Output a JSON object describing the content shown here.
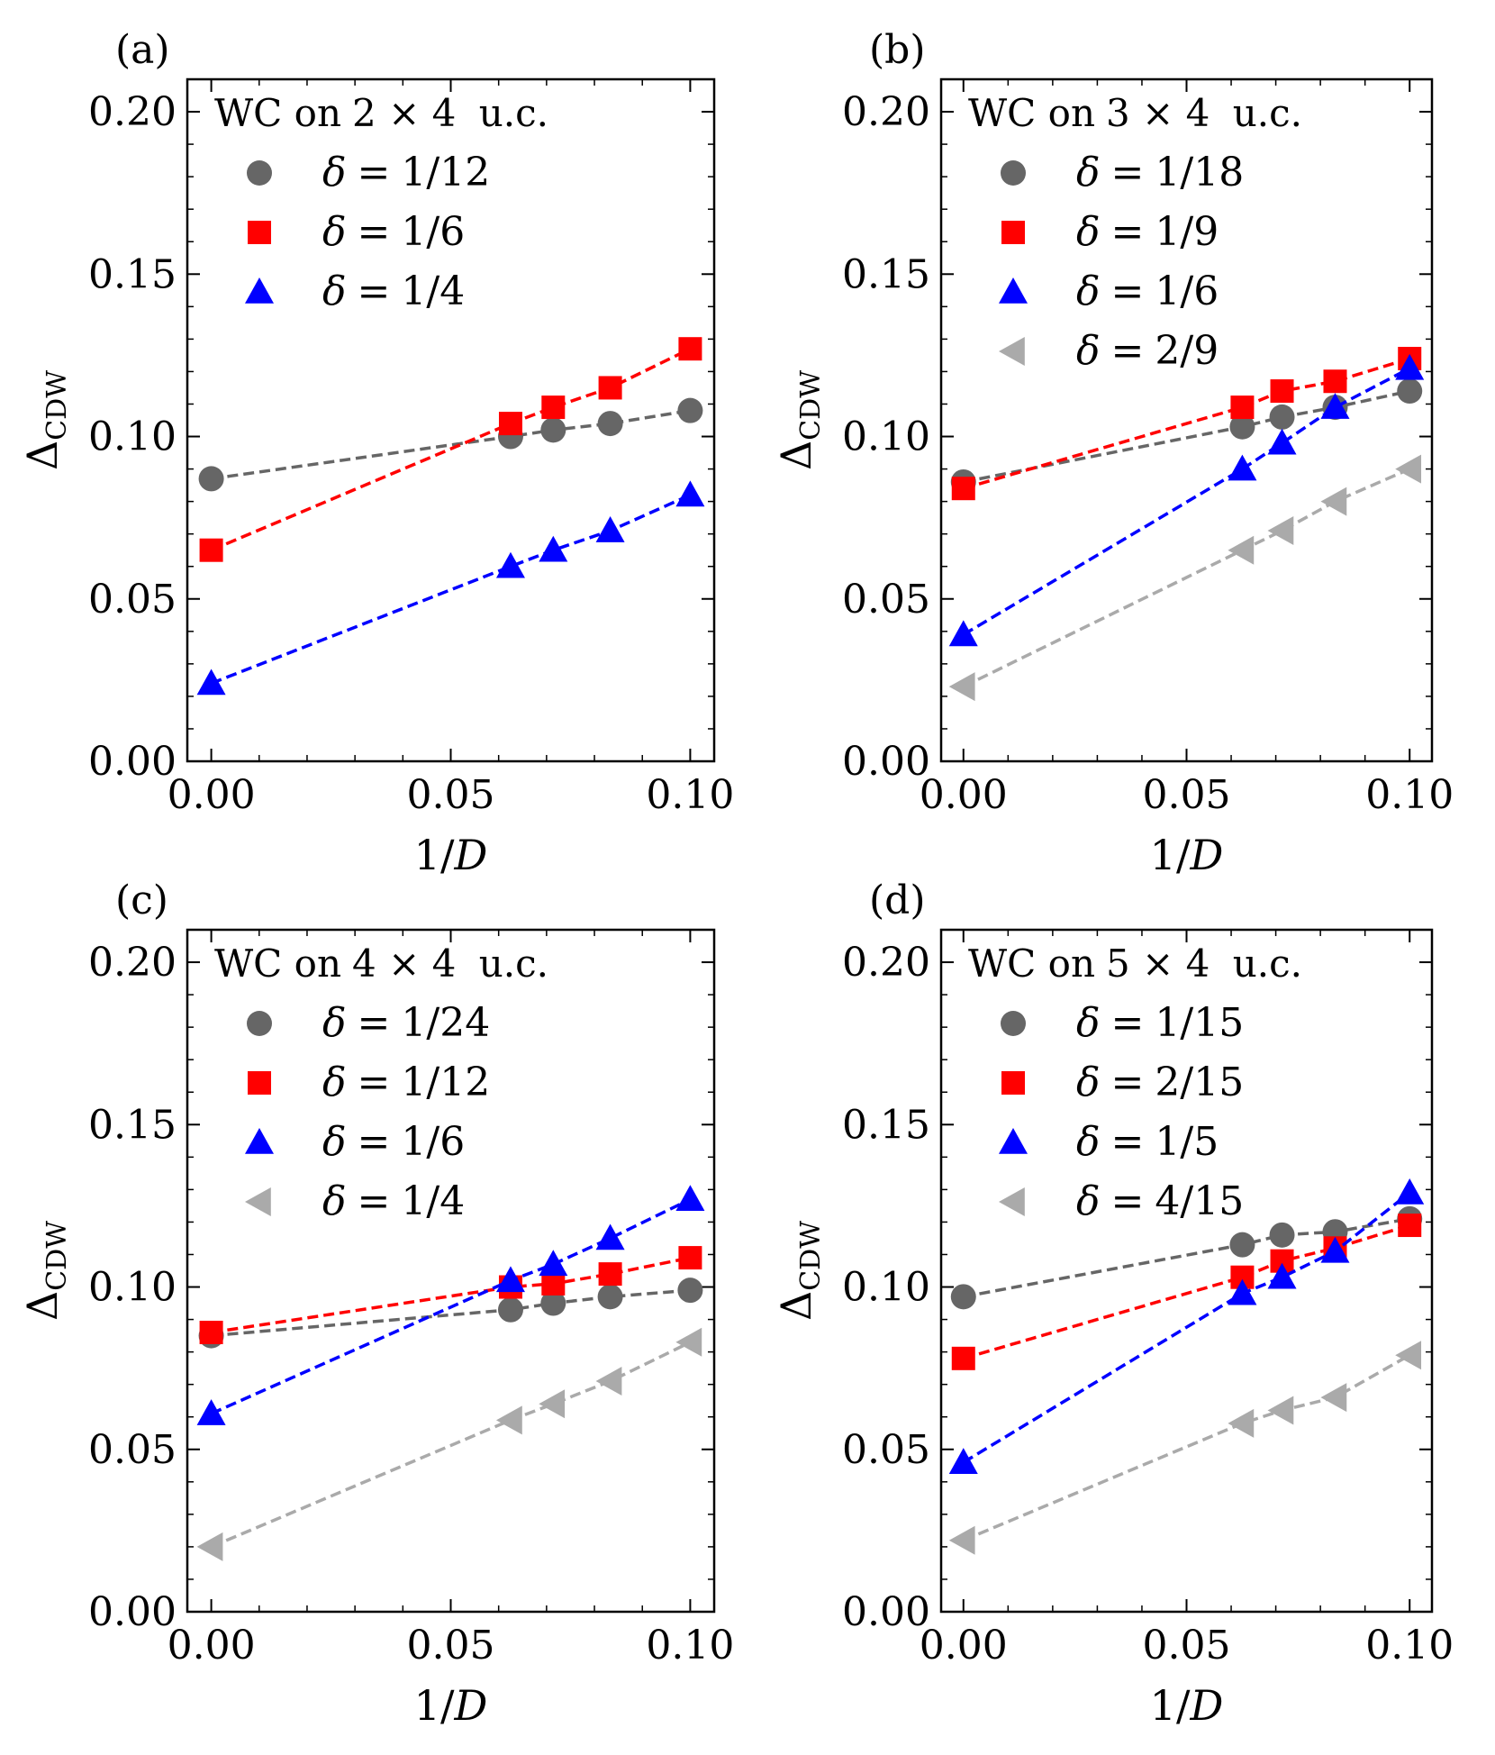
{
  "figure": {
    "xlabel_prefix": "1/",
    "xlabel_var": "D",
    "ylabel_main": "Δ",
    "ylabel_sub": "CDW",
    "xlim": [
      -0.005,
      0.105
    ],
    "ylim": [
      0.0,
      0.21
    ],
    "xticks": [
      "0.00",
      "0.05",
      "0.10"
    ],
    "yticks": [
      "0.00",
      "0.05",
      "0.10",
      "0.15",
      "0.20"
    ],
    "delta_symbol": "δ",
    "colors": {
      "gray": "#666666",
      "red": "#ff0000",
      "blue": "#0000ff",
      "lightgray": "#aaaaaa"
    }
  },
  "chart_data": [
    {
      "type": "line",
      "label": "(a)",
      "legend_title_prefix": "WC on",
      "legend_title_size": "2 × 4",
      "legend_title_suffix": "u.c.",
      "xlabel": "1/D",
      "ylabel": "ΔCDW",
      "series": [
        {
          "name": "δ = 1/12",
          "frac": "1/12",
          "marker": "circle",
          "color": "gray",
          "x": [
            0.0,
            0.0625,
            0.0714,
            0.0833,
            0.1
          ],
          "y": [
            0.087,
            0.1,
            0.102,
            0.104,
            0.108
          ]
        },
        {
          "name": "δ = 1/6",
          "frac": "1/6",
          "marker": "square",
          "color": "red",
          "x": [
            0.0,
            0.0625,
            0.0714,
            0.0833,
            0.1
          ],
          "y": [
            0.065,
            0.104,
            0.109,
            0.115,
            0.127
          ]
        },
        {
          "name": "δ = 1/4",
          "frac": "1/4",
          "marker": "triangle-up",
          "color": "blue",
          "x": [
            0.0,
            0.0625,
            0.0714,
            0.0833,
            0.1
          ],
          "y": [
            0.024,
            0.06,
            0.065,
            0.071,
            0.082
          ]
        }
      ]
    },
    {
      "type": "line",
      "label": "(b)",
      "legend_title_prefix": "WC on",
      "legend_title_size": "3 × 4",
      "legend_title_suffix": "u.c.",
      "xlabel": "1/D",
      "ylabel": "ΔCDW",
      "series": [
        {
          "name": "δ = 1/18",
          "frac": "1/18",
          "marker": "circle",
          "color": "gray",
          "x": [
            0.0,
            0.0625,
            0.0714,
            0.0833,
            0.1
          ],
          "y": [
            0.086,
            0.103,
            0.106,
            0.109,
            0.114
          ]
        },
        {
          "name": "δ = 1/9",
          "frac": "1/9",
          "marker": "square",
          "color": "red",
          "x": [
            0.0,
            0.0625,
            0.0714,
            0.0833,
            0.1
          ],
          "y": [
            0.084,
            0.109,
            0.114,
            0.117,
            0.124
          ]
        },
        {
          "name": "δ = 1/6",
          "frac": "1/6",
          "marker": "triangle-up",
          "color": "blue",
          "x": [
            0.0,
            0.0625,
            0.0714,
            0.0833,
            0.1
          ],
          "y": [
            0.039,
            0.09,
            0.098,
            0.109,
            0.121
          ]
        },
        {
          "name": "δ = 2/9",
          "frac": "2/9",
          "marker": "triangle-left",
          "color": "lightgray",
          "x": [
            0.0,
            0.0625,
            0.0714,
            0.0833,
            0.1
          ],
          "y": [
            0.023,
            0.065,
            0.071,
            0.08,
            0.09
          ]
        }
      ]
    },
    {
      "type": "line",
      "label": "(c)",
      "legend_title_prefix": "WC on",
      "legend_title_size": "4 × 4",
      "legend_title_suffix": "u.c.",
      "xlabel": "1/D",
      "ylabel": "ΔCDW",
      "series": [
        {
          "name": "δ = 1/24",
          "frac": "1/24",
          "marker": "circle",
          "color": "gray",
          "x": [
            0.0,
            0.0625,
            0.0714,
            0.0833,
            0.1
          ],
          "y": [
            0.085,
            0.093,
            0.095,
            0.097,
            0.099
          ]
        },
        {
          "name": "δ = 1/12",
          "frac": "1/12",
          "marker": "square",
          "color": "red",
          "x": [
            0.0,
            0.0625,
            0.0714,
            0.0833,
            0.1
          ],
          "y": [
            0.086,
            0.1,
            0.101,
            0.104,
            0.109
          ]
        },
        {
          "name": "δ = 1/6",
          "frac": "1/6",
          "marker": "triangle-up",
          "color": "blue",
          "x": [
            0.0,
            0.0625,
            0.0714,
            0.0833,
            0.1
          ],
          "y": [
            0.061,
            0.102,
            0.107,
            0.115,
            0.127
          ]
        },
        {
          "name": "δ = 1/4",
          "frac": "1/4",
          "marker": "triangle-left",
          "color": "lightgray",
          "x": [
            0.0,
            0.0625,
            0.0714,
            0.0833,
            0.1
          ],
          "y": [
            0.02,
            0.059,
            0.064,
            0.071,
            0.083
          ]
        }
      ]
    },
    {
      "type": "line",
      "label": "(d)",
      "legend_title_prefix": "WC on",
      "legend_title_size": "5 × 4",
      "legend_title_suffix": "u.c.",
      "xlabel": "1/D",
      "ylabel": "ΔCDW",
      "series": [
        {
          "name": "δ = 1/15",
          "frac": "1/15",
          "marker": "circle",
          "color": "gray",
          "x": [
            0.0,
            0.0625,
            0.0714,
            0.0833,
            0.1
          ],
          "y": [
            0.097,
            0.113,
            0.116,
            0.117,
            0.121
          ]
        },
        {
          "name": "δ = 2/15",
          "frac": "2/15",
          "marker": "square",
          "color": "red",
          "x": [
            0.0,
            0.0625,
            0.0714,
            0.0833,
            0.1
          ],
          "y": [
            0.078,
            0.103,
            0.108,
            0.112,
            0.119
          ]
        },
        {
          "name": "δ = 1/5",
          "frac": "1/5",
          "marker": "triangle-up",
          "color": "blue",
          "x": [
            0.0,
            0.0625,
            0.0714,
            0.0833,
            0.1
          ],
          "y": [
            0.046,
            0.098,
            0.103,
            0.111,
            0.129
          ]
        },
        {
          "name": "δ = 4/15",
          "frac": "4/15",
          "marker": "triangle-left",
          "color": "lightgray",
          "x": [
            0.0,
            0.0625,
            0.0714,
            0.0833,
            0.1
          ],
          "y": [
            0.022,
            0.058,
            0.062,
            0.066,
            0.079
          ]
        }
      ]
    }
  ]
}
